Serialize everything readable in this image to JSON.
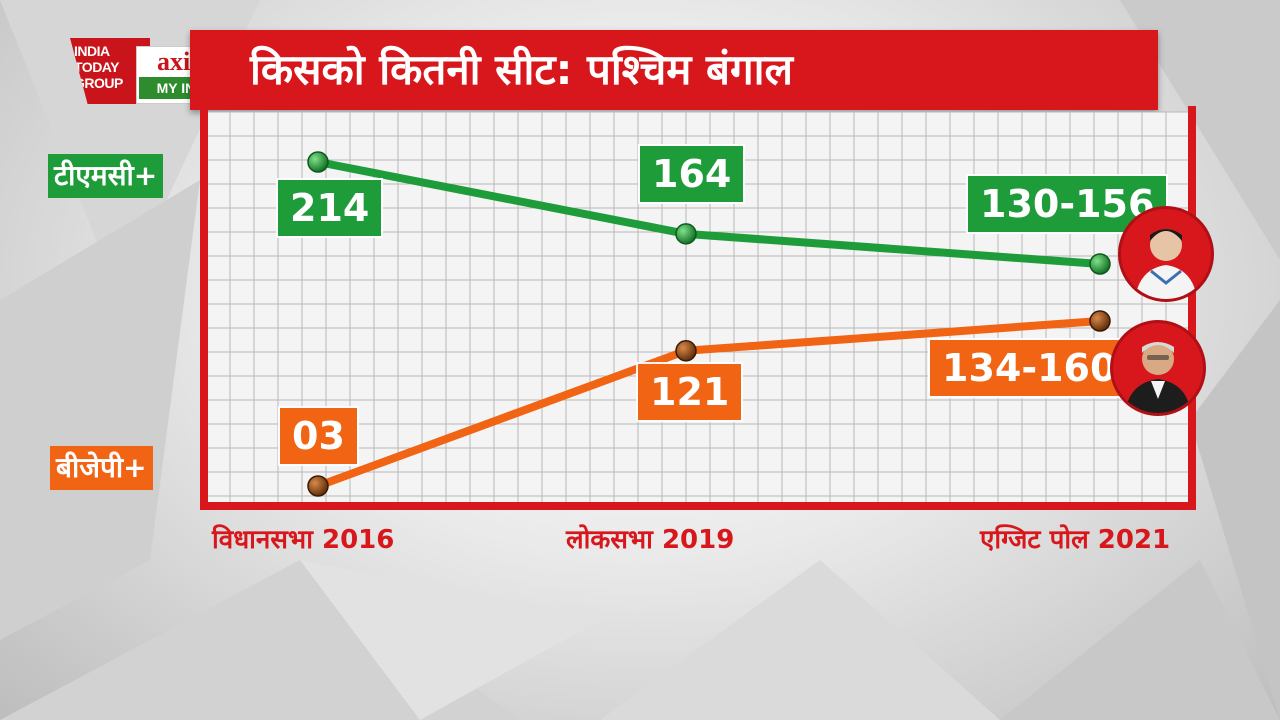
{
  "header": {
    "title": "किसको कितनी सीट: पश्चिम बंगाल",
    "logo_group": [
      "INDIA",
      "TODAY",
      "GROUP"
    ],
    "logo_axis": "axis",
    "logo_myindia": "MY INDIA"
  },
  "colors": {
    "accent_red": "#d8171c",
    "tmc_green": "#1f9c3a",
    "bjp_orange": "#f06414"
  },
  "chart_data": {
    "type": "line",
    "title": "किसको कितनी सीट: पश्चिम बंगाल",
    "categories": [
      "विधानसभा 2016",
      "लोकसभा 2019",
      "एग्जिट पोल 2021"
    ],
    "grid": true,
    "series": [
      {
        "name": "टीएमसी+",
        "color": "#1f9c3a",
        "values": [
          214,
          164,
          143
        ],
        "labels": [
          "214",
          "164",
          "130-156"
        ]
      },
      {
        "name": "बीजेपी+",
        "color": "#f06414",
        "values": [
          3,
          121,
          147
        ],
        "labels": [
          "03",
          "121",
          "134-160"
        ]
      }
    ]
  },
  "avatars": [
    "tmc-leader-avatar",
    "bjp-leader-avatar"
  ]
}
